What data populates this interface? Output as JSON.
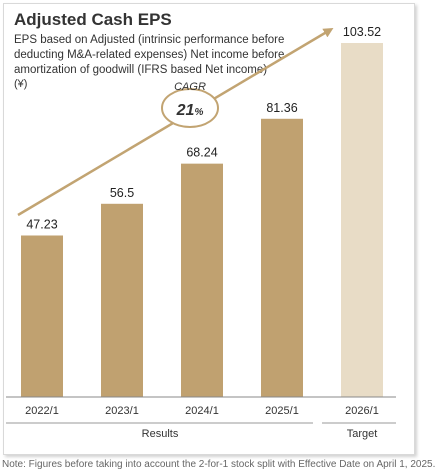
{
  "header": {
    "title": "Adjusted Cash EPS",
    "subtitle": "EPS based on Adjusted (intrinsic performance before deducting M&A-related expenses) Net income before amortization of goodwill (IFRS based Net income)",
    "unit": "(¥)"
  },
  "cagr": {
    "label": "CAGR",
    "value": "21",
    "suffix": "%"
  },
  "footnote": "Note: Figures before taking into account the 2-for-1 stock split with Effective Date on April 1, 2025.",
  "colors": {
    "bar_results": "#c0a170",
    "bar_target": "#e8dcc6",
    "arrow": "#c2a472",
    "text": "#333333"
  },
  "chart_data": {
    "type": "bar",
    "categories": [
      "2022/1",
      "2023/1",
      "2024/1",
      "2025/1",
      "2026/1"
    ],
    "values": [
      47.23,
      56.5,
      68.24,
      81.36,
      103.52
    ],
    "labels": [
      "47.23",
      "56.5",
      "68.24",
      "81.36",
      "103.52"
    ],
    "groups": [
      {
        "label": "Results",
        "categories": [
          "2022/1",
          "2023/1",
          "2024/1",
          "2025/1"
        ]
      },
      {
        "label": "Target",
        "categories": [
          "2026/1"
        ]
      }
    ],
    "ylim": [
      0,
      103.52
    ],
    "grid": false,
    "legend": "none"
  }
}
